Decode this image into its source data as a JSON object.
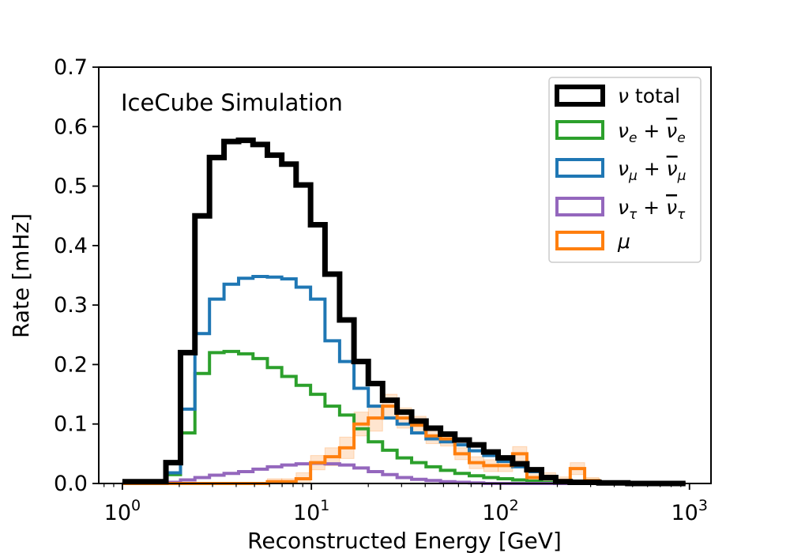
{
  "chart_data": {
    "type": "histogram-step",
    "annotation": "IceCube Simulation",
    "xlabel": "Reconstructed Energy [GeV]",
    "ylabel": "Rate [mHz]",
    "xscale": "log",
    "xlim": [
      0.75,
      1300
    ],
    "ylim": [
      0,
      0.7
    ],
    "xticks": [
      {
        "value": 1,
        "base": "10",
        "exp": "0"
      },
      {
        "value": 10,
        "base": "10",
        "exp": "1"
      },
      {
        "value": 100,
        "base": "10",
        "exp": "2"
      },
      {
        "value": 1000,
        "base": "10",
        "exp": "3"
      }
    ],
    "yticks": [
      "0.0",
      "0.1",
      "0.2",
      "0.3",
      "0.4",
      "0.5",
      "0.6",
      "0.7"
    ],
    "legend_position": "top-right",
    "bin_edges": [
      1.0,
      1.2,
      1.43,
      1.7,
      2.03,
      2.42,
      2.89,
      3.45,
      4.12,
      4.91,
      5.85,
      6.97,
      8.3,
      9.9,
      11.8,
      14.1,
      16.8,
      20.0,
      23.8,
      28.4,
      33.9,
      40.4,
      48.2,
      57.4,
      68.4,
      81.6,
      97.2,
      116,
      138,
      165,
      196,
      234,
      279,
      332,
      396,
      472,
      563,
      671,
      800,
      953
    ],
    "series": [
      {
        "name": "ν total",
        "color": "#000000",
        "style": "thick",
        "values": [
          0.003,
          0.003,
          0.003,
          0.035,
          0.22,
          0.45,
          0.548,
          0.575,
          0.577,
          0.57,
          0.552,
          0.537,
          0.502,
          0.435,
          0.352,
          0.275,
          0.205,
          0.168,
          0.14,
          0.12,
          0.105,
          0.093,
          0.083,
          0.073,
          0.065,
          0.053,
          0.043,
          0.033,
          0.023,
          0.01,
          0.003,
          0.002,
          0.002,
          0.001,
          0.001,
          0.0,
          0.0,
          0.0,
          0.0
        ]
      },
      {
        "name": "ν_e + ν̄_e",
        "color": "#2ca02c",
        "style": "normal",
        "values": [
          0.0,
          0.0,
          0.0,
          0.015,
          0.085,
          0.185,
          0.22,
          0.222,
          0.218,
          0.21,
          0.195,
          0.18,
          0.165,
          0.15,
          0.13,
          0.115,
          0.092,
          0.07,
          0.056,
          0.043,
          0.035,
          0.028,
          0.022,
          0.017,
          0.013,
          0.01,
          0.008,
          0.006,
          0.004,
          0.002,
          0.001,
          0.0,
          0.0,
          0.0,
          0.0,
          0.0,
          0.0,
          0.0,
          0.0
        ]
      },
      {
        "name": "ν_μ + ν̄_μ",
        "color": "#1f77b4",
        "style": "normal",
        "values": [
          0.001,
          0.001,
          0.002,
          0.018,
          0.125,
          0.252,
          0.31,
          0.335,
          0.345,
          0.348,
          0.347,
          0.344,
          0.33,
          0.31,
          0.24,
          0.205,
          0.16,
          0.13,
          0.11,
          0.1,
          0.085,
          0.075,
          0.07,
          0.065,
          0.055,
          0.047,
          0.037,
          0.028,
          0.02,
          0.008,
          0.003,
          0.002,
          0.001,
          0.001,
          0.0,
          0.0,
          0.0,
          0.0,
          0.0
        ]
      },
      {
        "name": "ν_τ + ν̄_τ",
        "color": "#9467bd",
        "style": "normal",
        "values": [
          0.0,
          0.0,
          0.0,
          0.002,
          0.006,
          0.01,
          0.014,
          0.017,
          0.02,
          0.024,
          0.028,
          0.031,
          0.033,
          0.034,
          0.033,
          0.031,
          0.026,
          0.02,
          0.015,
          0.01,
          0.007,
          0.005,
          0.003,
          0.002,
          0.001,
          0.0,
          0.0,
          0.0,
          0.0,
          0.0,
          0.0,
          0.0,
          0.0,
          0.0,
          0.0,
          0.0,
          0.0,
          0.0,
          0.0
        ]
      },
      {
        "name": "μ",
        "color": "#ff7f0e",
        "style": "normal",
        "values": [
          0.0,
          0.0,
          0.0,
          0.0,
          0.0,
          0.0,
          0.0,
          0.0,
          0.0,
          0.0,
          0.003,
          0.003,
          0.008,
          0.035,
          0.045,
          0.06,
          0.1,
          0.11,
          0.13,
          0.11,
          0.098,
          0.08,
          0.075,
          0.05,
          0.035,
          0.03,
          0.03,
          0.05,
          0.01,
          0.01,
          0.005,
          0.025,
          0.005,
          0.0,
          0.0,
          0.0,
          0.0,
          0.0,
          0.0
        ],
        "uncertainty": [
          0.0,
          0.0,
          0.0,
          0.0,
          0.0,
          0.0,
          0.0,
          0.0,
          0.0,
          0.0,
          0.005,
          0.005,
          0.01,
          0.012,
          0.015,
          0.018,
          0.02,
          0.022,
          0.02,
          0.017,
          0.015,
          0.013,
          0.012,
          0.01,
          0.01,
          0.01,
          0.01,
          0.012,
          0.008,
          0.008,
          0.006,
          0.01,
          0.005,
          0.0,
          0.0,
          0.0,
          0.0,
          0.0,
          0.0
        ]
      }
    ]
  }
}
